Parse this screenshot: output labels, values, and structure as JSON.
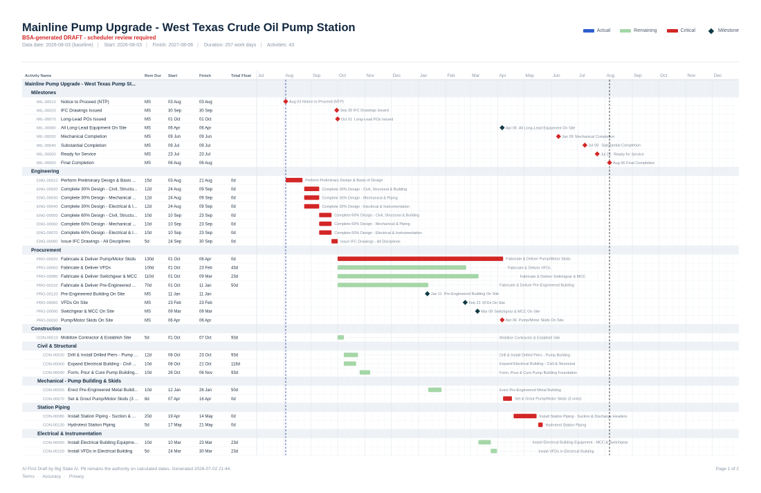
{
  "header": {
    "title": "Mainline Pump Upgrade - West Texas Crude Oil Pump Station",
    "subtitle": "BSA-generated DRAFT - scheduler review required",
    "meta": [
      "Data date: 2026-08-03 (baseline)",
      "Start: 2026-08-03",
      "Finish: 2027-08-06",
      "Duration: 257 work days",
      "Activities: 43"
    ]
  },
  "legend": [
    {
      "label": "Actual",
      "color": "#2f5fd0",
      "shape": "bar"
    },
    {
      "label": "Remaining",
      "color": "#a5d6a7",
      "shape": "bar"
    },
    {
      "label": "Critical",
      "color": "#d32626",
      "shape": "bar"
    },
    {
      "label": "Milestone",
      "color": "#0f3a44",
      "shape": "diamond"
    }
  ],
  "colors": {
    "critical": "#d32626",
    "remaining": "#a5d6a7",
    "milestone": "#0f3a44",
    "datadate": "#2c3e9e",
    "finish": "#1a1a1a"
  },
  "chart_data": {
    "type": "gantt",
    "columns": [
      "Activity Name",
      "Rem Dur",
      "Start",
      "Finish",
      "Total Float"
    ],
    "timeline": {
      "start": "2026-07-01",
      "end": "2027-12-31",
      "month_labels": [
        "Jul",
        "Aug",
        "Sep",
        "Oct",
        "Nov",
        "Dec",
        "Jan",
        "Feb",
        "Mar",
        "Apr",
        "May",
        "Jun",
        "Jul",
        "Aug",
        "Sep",
        "Oct",
        "Nov",
        "Dec"
      ],
      "data_date": "2026-08-03",
      "project_finish": "2027-08-06"
    },
    "rows": [
      {
        "type": "project",
        "name": "Mainline Pump Upgrade - West Texas Pump St..."
      },
      {
        "type": "group",
        "level": 1,
        "name": "Milestones"
      },
      {
        "type": "activity",
        "level": 1,
        "id": "MIL-00010",
        "name": "Notice to Proceed (NTP)",
        "full": "Notice to Proceed (NTP)",
        "dur": "MS",
        "start": "03 Aug",
        "finish": "03 Aug",
        "float": "",
        "s": "2026-08-03",
        "f": "2026-08-03",
        "kind": "milestone",
        "crit": true,
        "lbl": "Aug 03"
      },
      {
        "type": "activity",
        "level": 1,
        "id": "MIL-00020",
        "name": "IFC Drawings Issued",
        "full": "IFC Drawings Issued",
        "dur": "MS",
        "start": "30 Sep",
        "finish": "30 Sep",
        "float": "",
        "s": "2026-09-30",
        "f": "2026-09-30",
        "kind": "milestone",
        "crit": true,
        "lbl": "Sep 30"
      },
      {
        "type": "activity",
        "level": 1,
        "id": "MIL-00070",
        "name": "Long-Lead POs Issued",
        "full": "Long-Lead POs Issued",
        "dur": "MS",
        "start": "01 Oct",
        "finish": "01 Oct",
        "float": "",
        "s": "2026-10-01",
        "f": "2026-10-01",
        "kind": "milestone",
        "crit": true,
        "lbl": "Oct 01"
      },
      {
        "type": "activity",
        "level": 1,
        "id": "MIL-00080",
        "name": "All Long-Lead Equipment On Site",
        "full": "All Long-Lead Equipment On Site",
        "dur": "MS",
        "start": "06 Apr",
        "finish": "06 Apr",
        "float": "",
        "s": "2027-04-06",
        "f": "2027-04-06",
        "kind": "milestone",
        "crit": false,
        "lbl": "Apr 06"
      },
      {
        "type": "activity",
        "level": 1,
        "id": "MIL-00030",
        "name": "Mechanical Completion",
        "full": "Mechanical Completion",
        "dur": "MS",
        "start": "09 Jun",
        "finish": "09 Jun",
        "float": "",
        "s": "2027-06-09",
        "f": "2027-06-09",
        "kind": "milestone",
        "crit": true,
        "lbl": "Jun 09"
      },
      {
        "type": "activity",
        "level": 1,
        "id": "MIL-00040",
        "name": "Substantial Completion",
        "full": "Substantial Completion",
        "dur": "MS",
        "start": "09 Jul",
        "finish": "09 Jul",
        "float": "",
        "s": "2027-07-09",
        "f": "2027-07-09",
        "kind": "milestone",
        "crit": true,
        "lbl": "Jul 09"
      },
      {
        "type": "activity",
        "level": 1,
        "id": "MIL-00050",
        "name": "Ready for Service",
        "full": "Ready for Service",
        "dur": "MS",
        "start": "23 Jul",
        "finish": "23 Jul",
        "float": "",
        "s": "2027-07-23",
        "f": "2027-07-23",
        "kind": "milestone",
        "crit": true,
        "lbl": "Jul 23"
      },
      {
        "type": "activity",
        "level": 1,
        "id": "MIL-00060",
        "name": "Final Completion",
        "full": "Final Completion",
        "dur": "MS",
        "start": "06 Aug",
        "finish": "06 Aug",
        "float": "",
        "s": "2027-08-06",
        "f": "2027-08-06",
        "kind": "milestone",
        "crit": true,
        "lbl": "Aug 06"
      },
      {
        "type": "group",
        "level": 1,
        "name": "Engineering"
      },
      {
        "type": "activity",
        "level": 1,
        "id": "ENG-00010",
        "name": "Perform Preliminary Design & Basis ...",
        "full": "Perform Preliminary Design & Basis of Design",
        "dur": "15d",
        "start": "03 Aug",
        "finish": "21 Aug",
        "float": "0d",
        "s": "2026-08-03",
        "f": "2026-08-21",
        "kind": "bar",
        "crit": true
      },
      {
        "type": "activity",
        "level": 1,
        "id": "ENG-00020",
        "name": "Complete 30% Design - Civil, Structu...",
        "full": "Complete 30% Design - Civil, Structural & Building",
        "dur": "12d",
        "start": "24 Aug",
        "finish": "09 Sep",
        "float": "0d",
        "s": "2026-08-24",
        "f": "2026-09-09",
        "kind": "bar",
        "crit": true
      },
      {
        "type": "activity",
        "level": 1,
        "id": "ENG-00030",
        "name": "Complete 30% Design - Mechanical ...",
        "full": "Complete 30% Design - Mechanical & Piping",
        "dur": "12d",
        "start": "24 Aug",
        "finish": "09 Sep",
        "float": "0d",
        "s": "2026-08-24",
        "f": "2026-09-09",
        "kind": "bar",
        "crit": true
      },
      {
        "type": "activity",
        "level": 1,
        "id": "ENG-00040",
        "name": "Complete 30% Design - Electrical & I...",
        "full": "Complete 30% Design - Electrical & Instrumentation",
        "dur": "12d",
        "start": "24 Aug",
        "finish": "09 Sep",
        "float": "0d",
        "s": "2026-08-24",
        "f": "2026-09-09",
        "kind": "bar",
        "crit": true
      },
      {
        "type": "activity",
        "level": 1,
        "id": "ENG-00050",
        "name": "Complete 60% Design - Civil, Structu...",
        "full": "Complete 60% Design - Civil, Structural & Building",
        "dur": "10d",
        "start": "10 Sep",
        "finish": "23 Sep",
        "float": "0d",
        "s": "2026-09-10",
        "f": "2026-09-23",
        "kind": "bar",
        "crit": true
      },
      {
        "type": "activity",
        "level": 1,
        "id": "ENG-00060",
        "name": "Complete 60% Design - Mechanical ...",
        "full": "Complete 60% Design - Mechanical & Piping",
        "dur": "10d",
        "start": "10 Sep",
        "finish": "23 Sep",
        "float": "0d",
        "s": "2026-09-10",
        "f": "2026-09-23",
        "kind": "bar",
        "crit": true
      },
      {
        "type": "activity",
        "level": 1,
        "id": "ENG-00070",
        "name": "Complete 60% Design - Electrical & I...",
        "full": "Complete 60% Design - Electrical & Instrumentation",
        "dur": "10d",
        "start": "10 Sep",
        "finish": "23 Sep",
        "float": "0d",
        "s": "2026-09-10",
        "f": "2026-09-23",
        "kind": "bar",
        "crit": true
      },
      {
        "type": "activity",
        "level": 1,
        "id": "ENG-00080",
        "name": "Issue IFC Drawings - All Disciplines",
        "full": "Issue IFC Drawings - All Disciplines",
        "dur": "5d",
        "start": "24 Sep",
        "finish": "30 Sep",
        "float": "0d",
        "s": "2026-09-24",
        "f": "2026-09-30",
        "kind": "bar",
        "crit": true
      },
      {
        "type": "group",
        "level": 1,
        "name": "Procurement"
      },
      {
        "type": "activity",
        "level": 1,
        "id": "PRO-00020",
        "name": "Fabricate & Deliver Pump/Motor Skids",
        "full": "Fabricate & Deliver Pump/Motor Skids",
        "dur": "130d",
        "start": "01 Oct",
        "finish": "06 Apr",
        "float": "0d",
        "s": "2026-10-01",
        "f": "2027-04-06",
        "kind": "bar",
        "crit": true
      },
      {
        "type": "activity",
        "level": 1,
        "id": "PRO-00050",
        "name": "Fabricate & Deliver VFDs",
        "full": "Fabricate & Deliver VFDs",
        "dur": "100d",
        "start": "01 Oct",
        "finish": "23 Feb",
        "float": "43d",
        "s": "2026-10-01",
        "f": "2027-02-23",
        "kind": "bar",
        "crit": false
      },
      {
        "type": "activity",
        "level": 1,
        "id": "PRO-00080",
        "name": "Fabricate & Deliver Switchgear & MCC",
        "full": "Fabricate & Deliver Switchgear & MCC",
        "dur": "110d",
        "start": "01 Oct",
        "finish": "09 Mar",
        "float": "23d",
        "s": "2026-10-01",
        "f": "2027-03-09",
        "kind": "bar",
        "crit": false
      },
      {
        "type": "activity",
        "level": 1,
        "id": "PRO-00110",
        "name": "Fabricate & Deliver Pre-Engineered ...",
        "full": "Fabricate & Deliver Pre-Engineered Building",
        "dur": "70d",
        "start": "01 Oct",
        "finish": "11 Jan",
        "float": "50d",
        "s": "2026-10-01",
        "f": "2027-01-11",
        "kind": "bar",
        "crit": false
      },
      {
        "type": "activity",
        "level": 1,
        "id": "PRO-00120",
        "name": "Pre-Engineered Building On Site",
        "full": "Pre-Engineered Building On Site",
        "dur": "MS",
        "start": "11 Jan",
        "finish": "11 Jan",
        "float": "",
        "s": "2027-01-11",
        "f": "2027-01-11",
        "kind": "milestone",
        "crit": false,
        "lbl": "Jan 11"
      },
      {
        "type": "activity",
        "level": 1,
        "id": "PRO-00060",
        "name": "VFDs On Site",
        "full": "VFDs On Site",
        "dur": "MS",
        "start": "23 Feb",
        "finish": "23 Feb",
        "float": "",
        "s": "2027-02-23",
        "f": "2027-02-23",
        "kind": "milestone",
        "crit": false,
        "lbl": "Feb 23"
      },
      {
        "type": "activity",
        "level": 1,
        "id": "PRO-00090",
        "name": "Switchgear & MCC On Site",
        "full": "Switchgear & MCC On Site",
        "dur": "MS",
        "start": "09 Mar",
        "finish": "09 Mar",
        "float": "",
        "s": "2027-03-09",
        "f": "2027-03-09",
        "kind": "milestone",
        "crit": false,
        "lbl": "Mar 09"
      },
      {
        "type": "activity",
        "level": 1,
        "id": "PRO-00030",
        "name": "Pump/Motor Skids On Site",
        "full": "Pump/Motor Skids On Site",
        "dur": "MS",
        "start": "06 Apr",
        "finish": "06 Apr",
        "float": "",
        "s": "2027-04-06",
        "f": "2027-04-06",
        "kind": "milestone",
        "crit": true,
        "lbl": "Apr 06"
      },
      {
        "type": "group",
        "level": 1,
        "name": "Construction"
      },
      {
        "type": "activity",
        "level": 1,
        "id": "CON-00010",
        "name": "Mobilize Contractor & Establish Site",
        "full": "Mobilize Contractor & Establish Site",
        "dur": "5d",
        "start": "01 Oct",
        "finish": "07 Oct",
        "float": "93d",
        "s": "2026-10-01",
        "f": "2026-10-07",
        "kind": "bar",
        "crit": false
      },
      {
        "type": "group",
        "level": 2,
        "name": "Civil & Structural"
      },
      {
        "type": "activity",
        "level": 2,
        "id": "CON-00030",
        "name": "Drill & Install Drilled Piers - Pump ...",
        "full": "Drill & Install Drilled Piers - Pump Building",
        "dur": "12d",
        "start": "08 Oct",
        "finish": "23 Oct",
        "float": "93d",
        "s": "2026-10-08",
        "f": "2026-10-23",
        "kind": "bar",
        "crit": false
      },
      {
        "type": "activity",
        "level": 2,
        "id": "CON-00060",
        "name": "Expand Electrical Building - Civil ...",
        "full": "Expand Electrical Building - Civil & Structural",
        "dur": "10d",
        "start": "08 Oct",
        "finish": "21 Oct",
        "float": "118d",
        "s": "2026-10-08",
        "f": "2026-10-21",
        "kind": "bar",
        "crit": false
      },
      {
        "type": "activity",
        "level": 2,
        "id": "CON-00040",
        "name": "Form, Pour & Cure Pump Building...",
        "full": "Form, Pour & Cure Pump Building Foundation",
        "dur": "10d",
        "start": "26 Oct",
        "finish": "06 Nov",
        "float": "93d",
        "s": "2026-10-26",
        "f": "2026-11-06",
        "kind": "bar",
        "crit": false
      },
      {
        "type": "group",
        "level": 2,
        "name": "Mechanical - Pump Building & Skids"
      },
      {
        "type": "activity",
        "level": 2,
        "id": "CON-00050",
        "name": "Erect Pre-Engineered Metal Buildi...",
        "full": "Erect Pre-Engineered Metal Building",
        "dur": "10d",
        "start": "12 Jan",
        "finish": "26 Jan",
        "float": "50d",
        "s": "2027-01-12",
        "f": "2027-01-26",
        "kind": "bar",
        "crit": false
      },
      {
        "type": "activity",
        "level": 2,
        "id": "CON-00070",
        "name": "Set & Grout Pump/Motor Skids (3 ...",
        "full": "Set & Grout Pump/Motor Skids (3 units)",
        "dur": "8d",
        "start": "07 Apr",
        "finish": "16 Apr",
        "float": "0d",
        "s": "2027-04-07",
        "f": "2027-04-16",
        "kind": "bar",
        "crit": true
      },
      {
        "type": "group",
        "level": 2,
        "name": "Station Piping"
      },
      {
        "type": "activity",
        "level": 2,
        "id": "CON-00080",
        "name": "Install Station Piping - Suction & ...",
        "full": "Install Station Piping - Suction & Discharge Headers",
        "dur": "20d",
        "start": "19 Apr",
        "finish": "14 May",
        "float": "0d",
        "s": "2027-04-19",
        "f": "2027-05-14",
        "kind": "bar",
        "crit": true
      },
      {
        "type": "activity",
        "level": 2,
        "id": "CON-00130",
        "name": "Hydrotest Station Piping",
        "full": "Hydrotest Station Piping",
        "dur": "5d",
        "start": "17 May",
        "finish": "21 May",
        "float": "0d",
        "s": "2027-05-17",
        "f": "2027-05-21",
        "kind": "bar",
        "crit": true
      },
      {
        "type": "group",
        "level": 2,
        "name": "Electrical & Instrumentation"
      },
      {
        "type": "activity",
        "level": 2,
        "id": "CON-00090",
        "name": "Install Electrical Building Equipme...",
        "full": "Install Electrical Building Equipment - MCC & Switchgear",
        "dur": "10d",
        "start": "10 Mar",
        "finish": "23 Mar",
        "float": "23d",
        "s": "2027-03-10",
        "f": "2027-03-23",
        "kind": "bar",
        "crit": false
      },
      {
        "type": "activity",
        "level": 2,
        "id": "CON-00100",
        "name": "Install VFDs in Electrical Building",
        "full": "Install VFDs in Electrical Building",
        "dur": "5d",
        "start": "24 Mar",
        "finish": "30 Mar",
        "float": "23d",
        "s": "2027-03-24",
        "f": "2027-03-30",
        "kind": "bar",
        "crit": false
      }
    ]
  },
  "footer": {
    "note": "AI First Draft by Big State AI. P6 remains the authority on calculated dates. Generated 2026-07-02 21:44.",
    "links": [
      "Terms",
      "Accuracy",
      "Privacy"
    ],
    "page": "Page 1 of 2"
  }
}
